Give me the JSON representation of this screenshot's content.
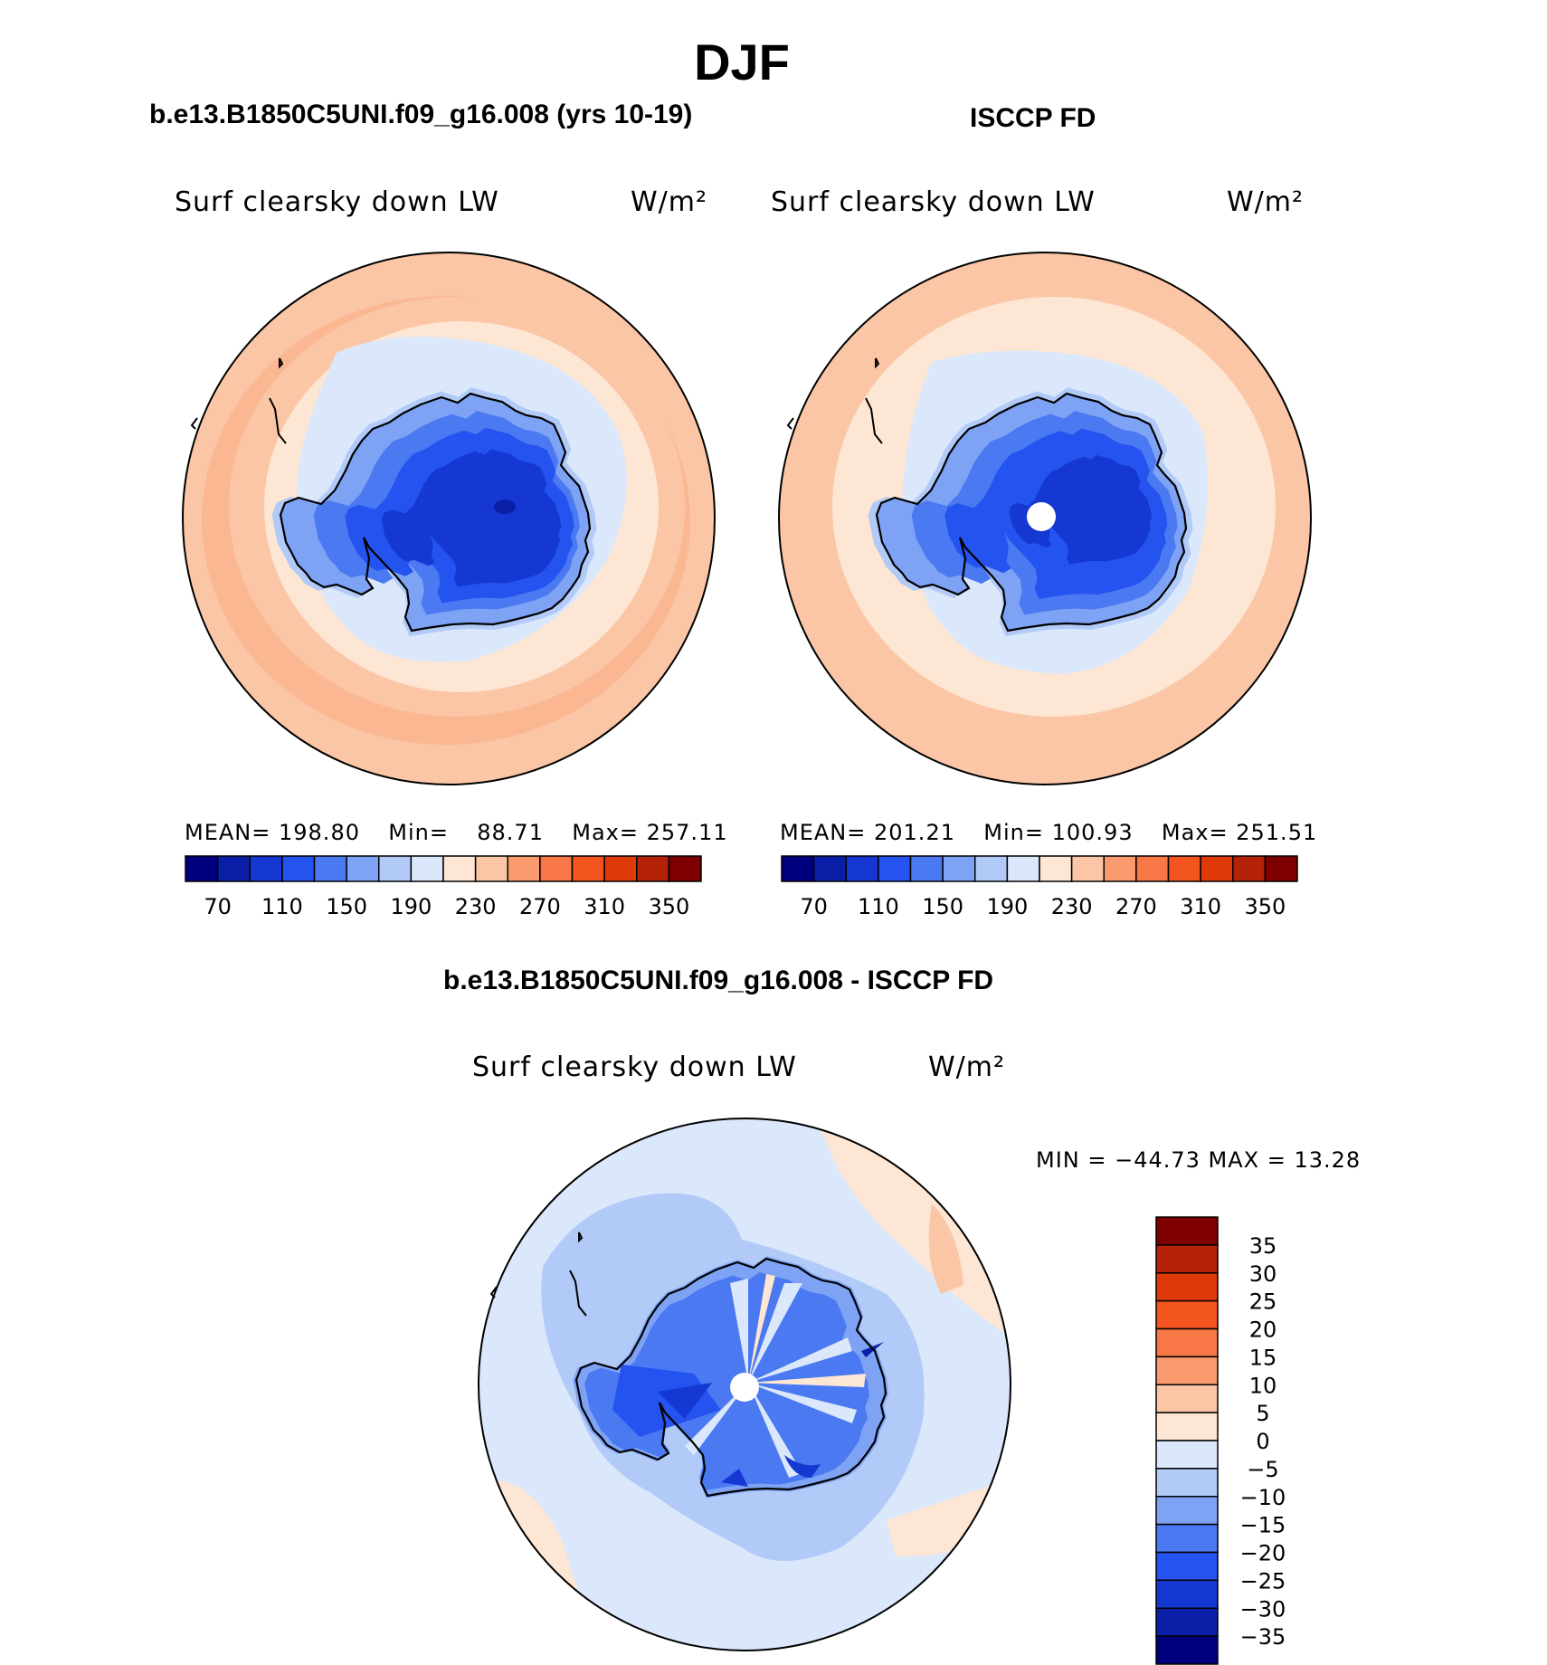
{
  "figure": {
    "title": "DJF",
    "colors": {
      "coast": "#000000",
      "outline": "#000000",
      "missing": "#ffffff"
    }
  },
  "panels": {
    "model": {
      "subtitle": "b.e13.B1850C5UNI.f09_g16.008 (yrs 10-19)",
      "variable": "Surf clearsky down LW",
      "units": "W/m²",
      "mean_label": "MEAN=",
      "mean": "198.80",
      "min_label": "Min=",
      "min": "88.71",
      "max_label": "Max=",
      "max": "257.11"
    },
    "obs": {
      "subtitle": "ISCCP FD",
      "variable": "Surf clearsky down LW",
      "units": "W/m²",
      "mean_label": "MEAN=",
      "mean": "201.21",
      "min_label": "Min=",
      "min": "100.93",
      "max_label": "Max=",
      "max": "251.51"
    },
    "diff": {
      "subtitle": "b.e13.B1850C5UNI.f09_g16.008 - ISCCP FD",
      "variable": "Surf clearsky down LW",
      "units": "W/m²",
      "minmax": "MIN = −44.73 MAX =   13.28"
    }
  },
  "colorbar_abs": {
    "ticks": [
      "70",
      "110",
      "150",
      "190",
      "230",
      "270",
      "310",
      "350"
    ],
    "colors": [
      "#00007f",
      "#0a1fa8",
      "#1537d2",
      "#2453f0",
      "#4a79f2",
      "#7ea2f4",
      "#b2caf8",
      "#dbe8fb",
      "#fde6d3",
      "#fbc6a6",
      "#f99b6e",
      "#f77846",
      "#f4541e",
      "#df3a0a",
      "#b42208",
      "#7f0000"
    ]
  },
  "colorbar_diff": {
    "ticks": [
      "35",
      "30",
      "25",
      "20",
      "15",
      "10",
      "5",
      "0",
      "−5",
      "−10",
      "−15",
      "−20",
      "−25",
      "−30",
      "−35"
    ],
    "colors": [
      "#7f0000",
      "#b42208",
      "#df3a0a",
      "#f4541e",
      "#f77846",
      "#f99b6e",
      "#fbc6a6",
      "#fde6d3",
      "#dbe8fb",
      "#b2caf8",
      "#7ea2f4",
      "#4a79f2",
      "#2453f0",
      "#1537d2",
      "#0a1fa8",
      "#00007f"
    ]
  }
}
